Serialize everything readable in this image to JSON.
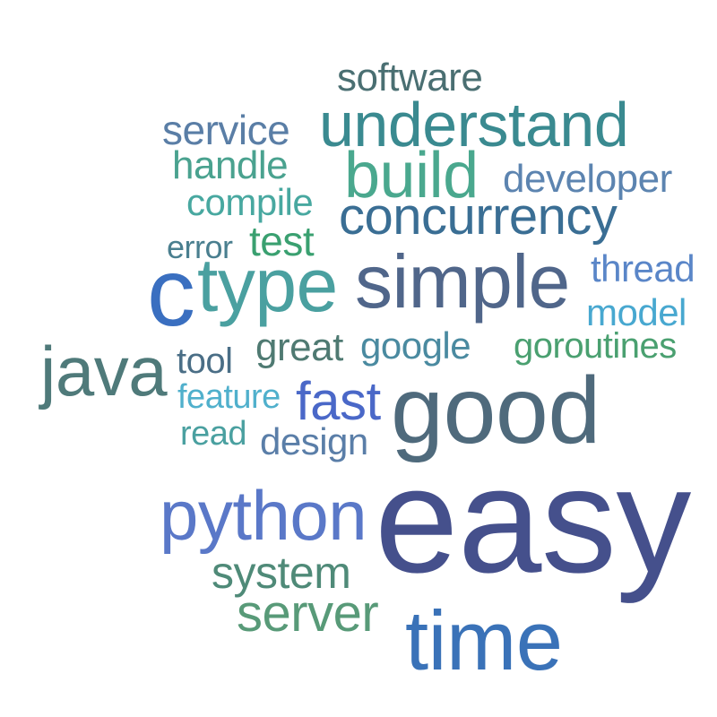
{
  "words": {
    "software": {
      "text": "software",
      "color": "#4a6f72"
    },
    "understand": {
      "text": "understand",
      "color": "#3a8a90"
    },
    "service": {
      "text": "service",
      "color": "#5a7ea6"
    },
    "handle": {
      "text": "handle",
      "color": "#4aa28f"
    },
    "build": {
      "text": "build",
      "color": "#4aa88e"
    },
    "developer": {
      "text": "developer",
      "color": "#5c84b0"
    },
    "compile": {
      "text": "compile",
      "color": "#48a8a0"
    },
    "concurrency": {
      "text": "concurrency",
      "color": "#3a6e94"
    },
    "error": {
      "text": "error",
      "color": "#4a7f8f"
    },
    "test": {
      "text": "test",
      "color": "#3aa070"
    },
    "thread": {
      "text": "thread",
      "color": "#5a86c8"
    },
    "c": {
      "text": "c",
      "color": "#3a6fc0"
    },
    "type": {
      "text": "type",
      "color": "#4aa0a0"
    },
    "simple": {
      "text": "simple",
      "color": "#50668a"
    },
    "model": {
      "text": "model",
      "color": "#48a8d0"
    },
    "great": {
      "text": "great",
      "color": "#4f7a72"
    },
    "google": {
      "text": "google",
      "color": "#4a8aa0"
    },
    "goroutines": {
      "text": "goroutines",
      "color": "#4aa070"
    },
    "java": {
      "text": "java",
      "color": "#4f7a7a"
    },
    "tool": {
      "text": "tool",
      "color": "#4a6e86"
    },
    "feature": {
      "text": "feature",
      "color": "#50b0cc"
    },
    "fast": {
      "text": "fast",
      "color": "#4a68c8"
    },
    "good": {
      "text": "good",
      "color": "#4f6a7c"
    },
    "read": {
      "text": "read",
      "color": "#4aa0a0"
    },
    "design": {
      "text": "design",
      "color": "#5a7ea8"
    },
    "python": {
      "text": "python",
      "color": "#5a78c8"
    },
    "easy": {
      "text": "easy",
      "color": "#45508c"
    },
    "system": {
      "text": "system",
      "color": "#4f8a78"
    },
    "server": {
      "text": "server",
      "color": "#589a78"
    },
    "time": {
      "text": "time",
      "color": "#3a72b8"
    }
  }
}
